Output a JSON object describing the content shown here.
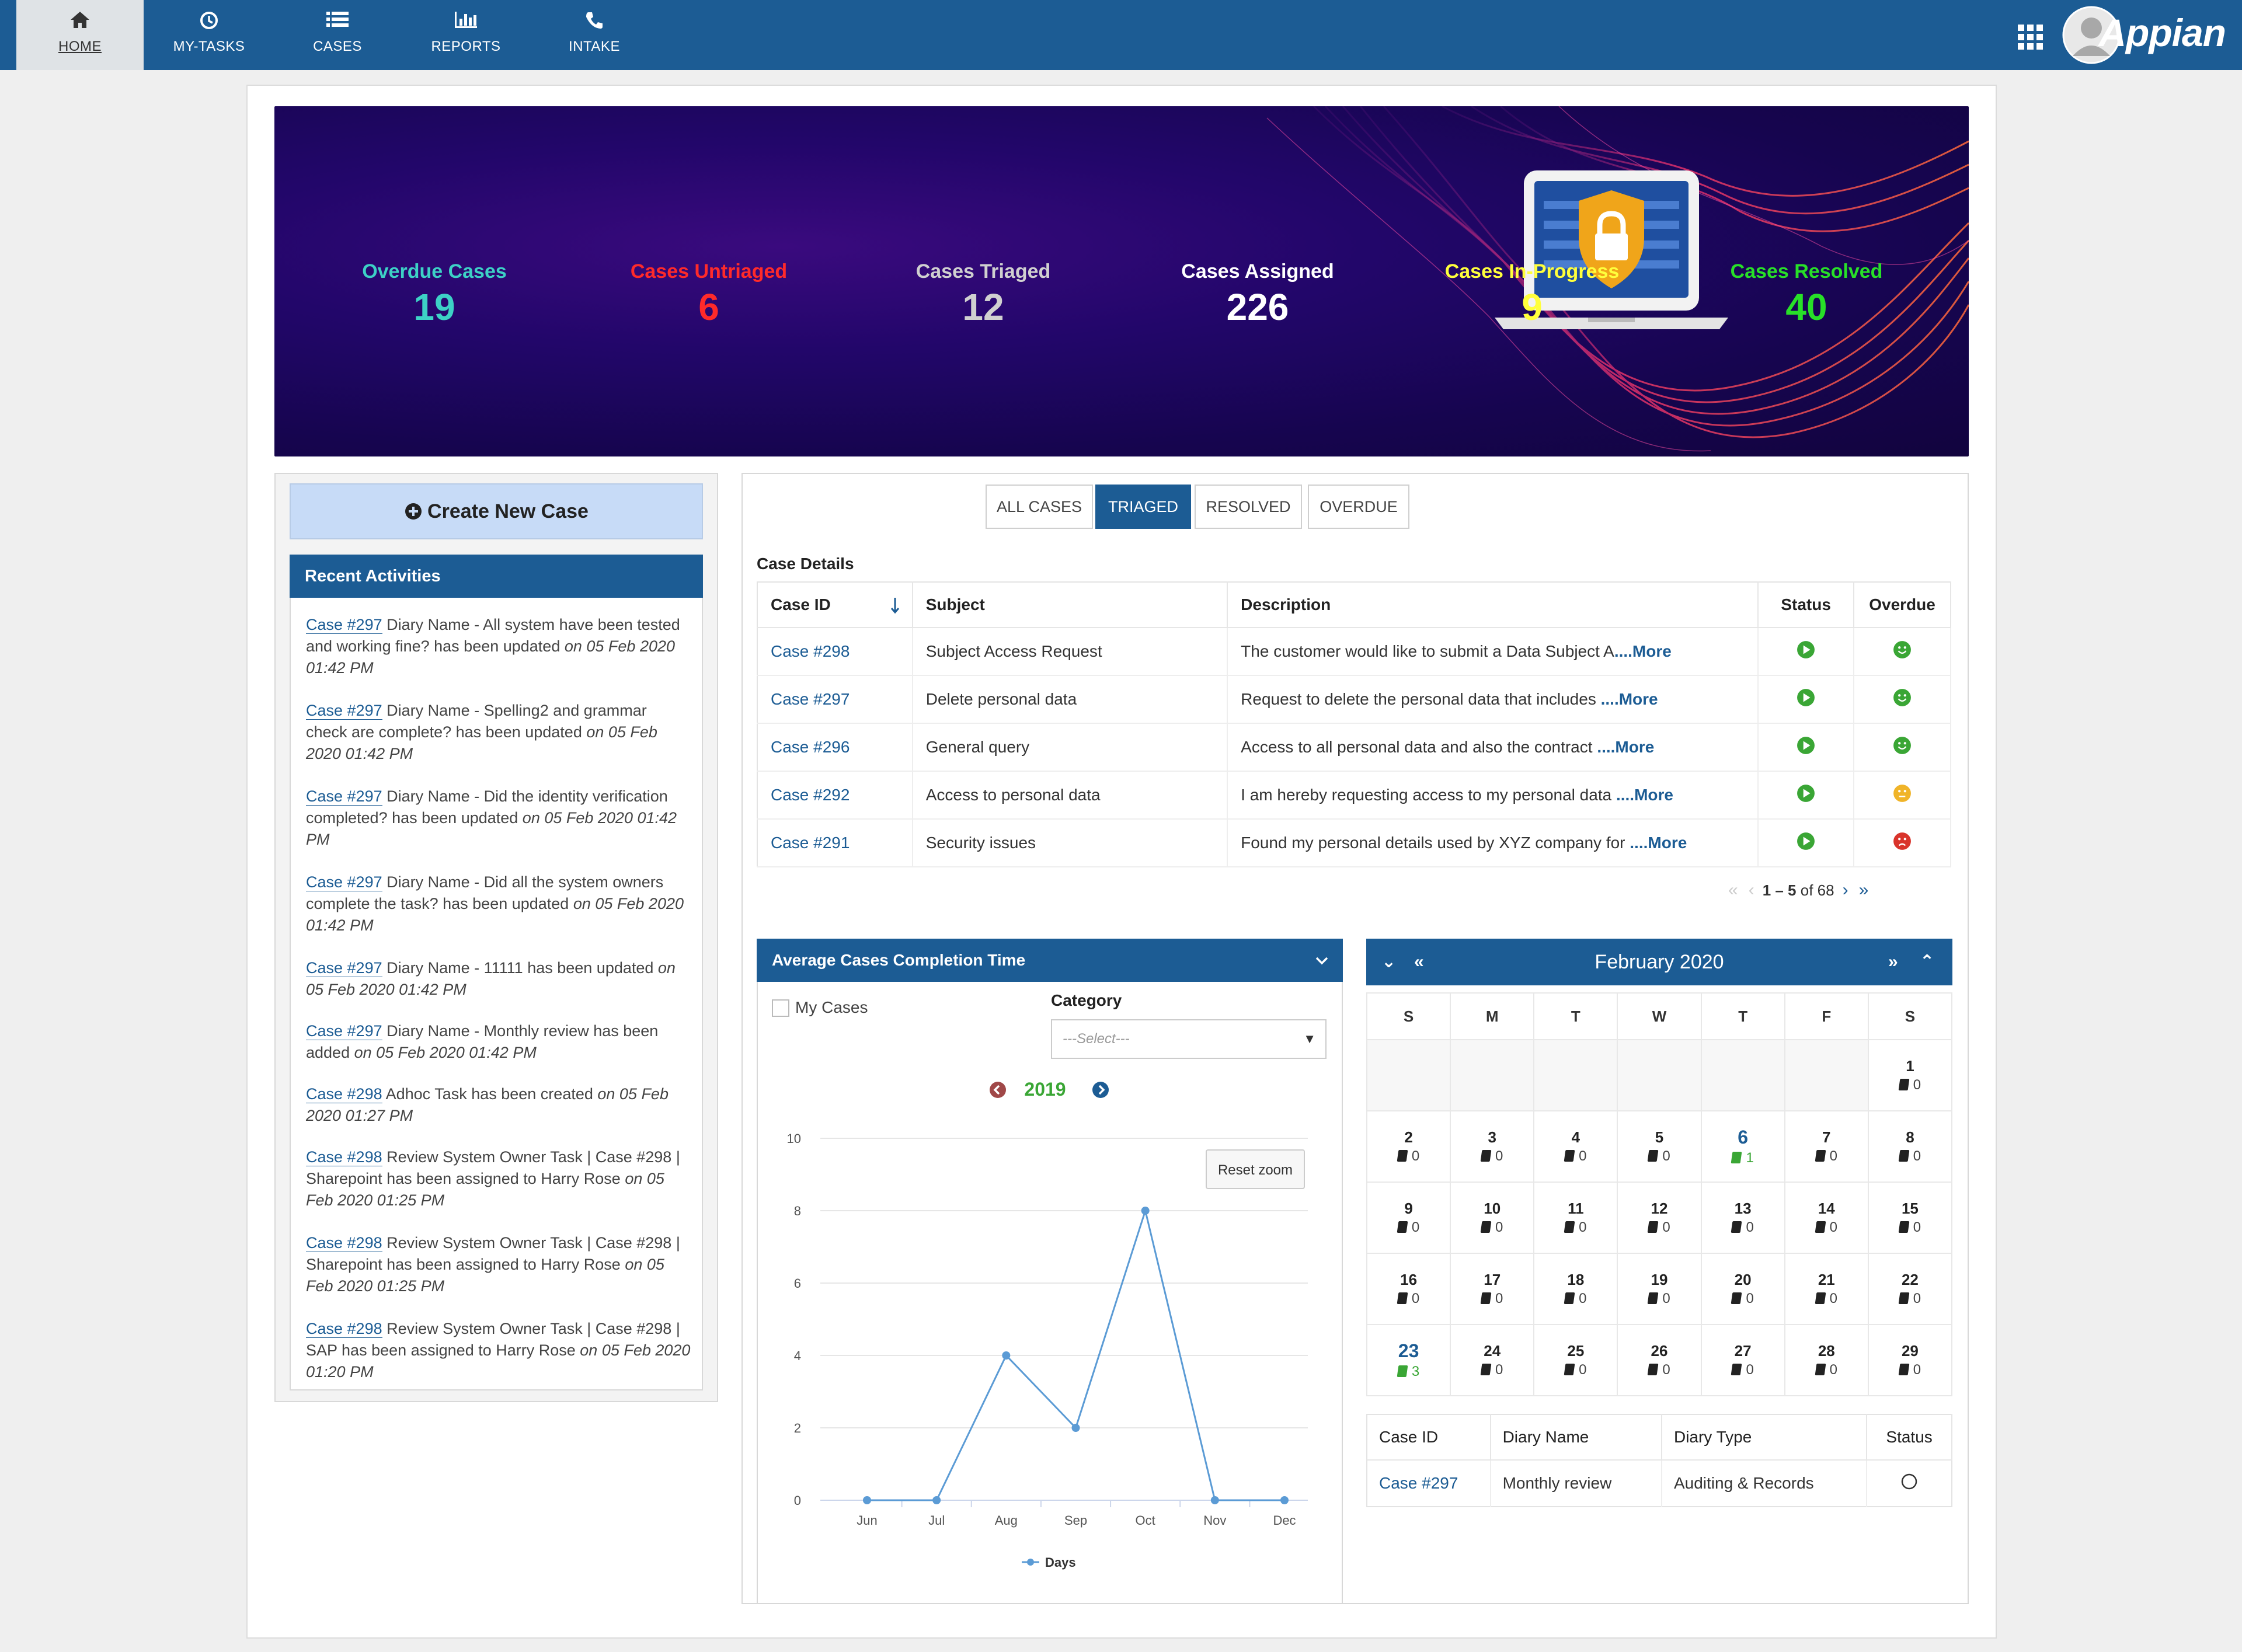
{
  "nav": {
    "items": [
      {
        "label": "HOME",
        "icon": "home-icon"
      },
      {
        "label": "MY-TASKS",
        "icon": "clock-icon"
      },
      {
        "label": "CASES",
        "icon": "list-icon"
      },
      {
        "label": "REPORTS",
        "icon": "bar-chart-icon"
      },
      {
        "label": "INTAKE",
        "icon": "phone-icon"
      }
    ],
    "brand": "Appian",
    "active_color": "#1c5c94"
  },
  "stats": [
    {
      "label": "Overdue Cases",
      "value": "19",
      "color": "#3dd1c6"
    },
    {
      "label": "Cases Untriaged",
      "value": "6",
      "color": "#ff2a2a"
    },
    {
      "label": "Cases Triaged",
      "value": "12",
      "color": "#d0d0d0"
    },
    {
      "label": "Cases Assigned",
      "value": "226",
      "color": "#ffffff"
    },
    {
      "label": "Cases In-Progress",
      "value": "9",
      "color": "#ffff3c"
    },
    {
      "label": "Cases Resolved",
      "value": "40",
      "color": "#28e028"
    }
  ],
  "left": {
    "create_label": "Create New Case",
    "recent_title": "Recent Activities",
    "activities": [
      {
        "case": "Case #297",
        "text": " Diary Name - All system have been tested and working fine? has been updated ",
        "when": "on 05 Feb 2020 01:42 PM"
      },
      {
        "case": "Case #297",
        "text": " Diary Name - Spelling2 and grammar check are complete? has been updated ",
        "when": "on 05 Feb 2020 01:42 PM"
      },
      {
        "case": "Case #297",
        "text": " Diary Name - Did the identity verification completed? has been updated ",
        "when": "on 05 Feb 2020 01:42 PM"
      },
      {
        "case": "Case #297",
        "text": " Diary Name - Did all the system owners complete the task? has been updated ",
        "when": "on 05 Feb 2020 01:42 PM"
      },
      {
        "case": "Case #297",
        "text": " Diary Name - 11111 has been updated ",
        "when": "on 05 Feb 2020 01:42 PM"
      },
      {
        "case": "Case #297",
        "text": " Diary Name - Monthly review has been added ",
        "when": "on 05 Feb 2020 01:42 PM"
      },
      {
        "case": "Case #298",
        "text": " Adhoc Task has been created ",
        "when": "on 05 Feb 2020 01:27 PM"
      },
      {
        "case": "Case #298",
        "text": " Review System Owner Task | Case #298 | Sharepoint has been assigned to Harry Rose ",
        "when": "on 05 Feb 2020 01:25 PM"
      },
      {
        "case": "Case #298",
        "text": " Review System Owner Task | Case #298 | Sharepoint has been assigned to Harry Rose ",
        "when": "on 05 Feb 2020 01:25 PM"
      },
      {
        "case": "Case #298",
        "text": " Review System Owner Task | Case #298 | SAP has been assigned to Harry Rose ",
        "when": "on 05 Feb 2020 01:20 PM"
      }
    ]
  },
  "tabs": [
    "ALL CASES",
    "TRIAGED",
    "RESOLVED",
    "OVERDUE"
  ],
  "case_details": {
    "title": "Case Details",
    "headers": [
      "Case ID",
      "Subject",
      "Description",
      "Status",
      "Overdue"
    ],
    "rows": [
      {
        "id": "Case #298",
        "subject": "Subject Access Request",
        "desc": "The customer would like to submit a Data Subject A",
        "more": "....More",
        "overdue": "green"
      },
      {
        "id": "Case #297",
        "subject": "Delete personal data",
        "desc": "Request to delete the personal data that includes ",
        "more": "....More",
        "overdue": "green"
      },
      {
        "id": "Case #296",
        "subject": "General query",
        "desc": "Access to all personal data and also the contract ",
        "more": "....More",
        "overdue": "green"
      },
      {
        "id": "Case #292",
        "subject": "Access to personal data",
        "desc": "I am hereby requesting access to my personal data ",
        "more": "....More",
        "overdue": "yellow"
      },
      {
        "id": "Case #291",
        "subject": "Security issues",
        "desc": "Found my personal details used by XYZ company for ",
        "more": "....More",
        "overdue": "red"
      }
    ],
    "pager_range": "1 – 5",
    "pager_total": " of 68"
  },
  "chart_panel": {
    "title": "Average Cases Completion Time",
    "my_cases_label": "My Cases",
    "category_label": "Category",
    "category_placeholder": "---Select---",
    "year": "2019",
    "reset_zoom": "Reset zoom"
  },
  "chart_data": {
    "type": "line",
    "categories": [
      "Jun",
      "Jul",
      "Aug",
      "Sep",
      "Oct",
      "Nov",
      "Dec"
    ],
    "series": [
      {
        "name": "Days",
        "values": [
          0,
          0,
          4,
          2,
          8,
          0,
          0
        ],
        "color": "#5b9bd5"
      }
    ],
    "ylim": [
      0,
      10
    ],
    "yticks": [
      0,
      2,
      4,
      6,
      8,
      10
    ],
    "legend": "bottom",
    "grid": true
  },
  "calendar": {
    "title": "February 2020",
    "weekdays": [
      "S",
      "M",
      "T",
      "W",
      "T",
      "F",
      "S"
    ],
    "weeks": [
      [
        null,
        null,
        null,
        null,
        null,
        null,
        {
          "d": "1",
          "n": "0"
        }
      ],
      [
        {
          "d": "2",
          "n": "0"
        },
        {
          "d": "3",
          "n": "0"
        },
        {
          "d": "4",
          "n": "0"
        },
        {
          "d": "5",
          "n": "0"
        },
        {
          "d": "6",
          "n": "1",
          "hl": true
        },
        {
          "d": "7",
          "n": "0"
        },
        {
          "d": "8",
          "n": "0"
        }
      ],
      [
        {
          "d": "9",
          "n": "0"
        },
        {
          "d": "10",
          "n": "0"
        },
        {
          "d": "11",
          "n": "0"
        },
        {
          "d": "12",
          "n": "0"
        },
        {
          "d": "13",
          "n": "0"
        },
        {
          "d": "14",
          "n": "0"
        },
        {
          "d": "15",
          "n": "0"
        }
      ],
      [
        {
          "d": "16",
          "n": "0"
        },
        {
          "d": "17",
          "n": "0"
        },
        {
          "d": "18",
          "n": "0"
        },
        {
          "d": "19",
          "n": "0"
        },
        {
          "d": "20",
          "n": "0"
        },
        {
          "d": "21",
          "n": "0"
        },
        {
          "d": "22",
          "n": "0"
        }
      ],
      [
        {
          "d": "23",
          "n": "3",
          "hl": true
        },
        {
          "d": "24",
          "n": "0"
        },
        {
          "d": "25",
          "n": "0"
        },
        {
          "d": "26",
          "n": "0"
        },
        {
          "d": "27",
          "n": "0"
        },
        {
          "d": "28",
          "n": "0"
        },
        {
          "d": "29",
          "n": "0"
        }
      ]
    ]
  },
  "diary": {
    "headers": [
      "Case ID",
      "Diary Name",
      "Diary Type",
      "Status"
    ],
    "row": {
      "id": "Case #297",
      "name": "Monthly review",
      "type": "Auditing & Records"
    }
  }
}
